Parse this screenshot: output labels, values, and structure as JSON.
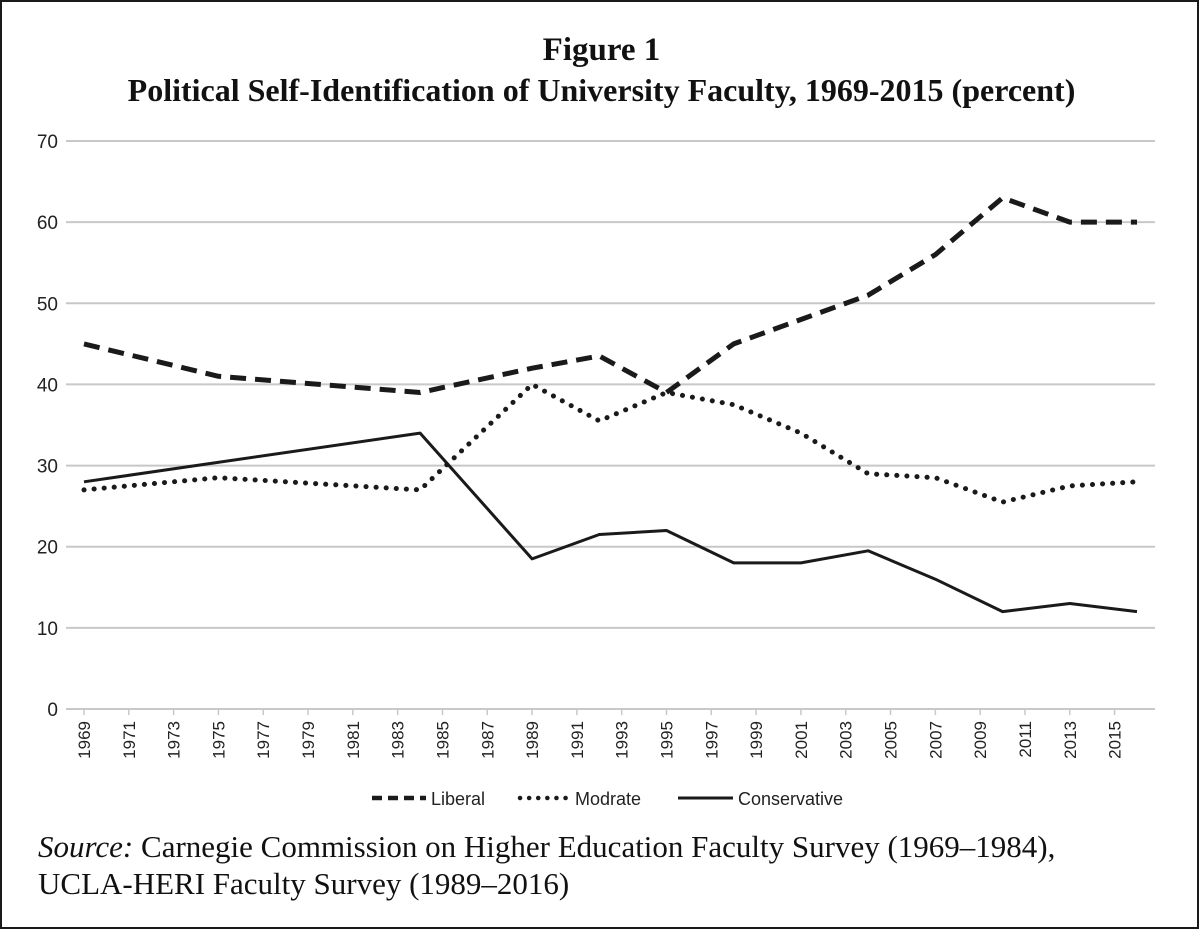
{
  "title": "Figure 1",
  "subtitle": "Political Self-Identification of University Faculty, 1969-2015 (percent)",
  "source": {
    "label": "Source:",
    "line1": "Carnegie Commission on Higher Education Faculty Survey (1969–1984),",
    "line2": "UCLA-HERI Faculty Survey (1989–2016)"
  },
  "chart_data": {
    "type": "line",
    "title": "Political Self-Identification of University Faculty, 1969-2015 (percent)",
    "xlabel": "",
    "ylabel": "",
    "xlim": [
      1969,
      2016
    ],
    "ylim": [
      0,
      70
    ],
    "yticks": [
      0,
      10,
      20,
      30,
      40,
      50,
      60,
      70
    ],
    "xtick_labels": [
      "1969",
      "1971",
      "1973",
      "1975",
      "1977",
      "1979",
      "1981",
      "1983",
      "1985",
      "1987",
      "1989",
      "1991",
      "1993",
      "1995",
      "1997",
      "1999",
      "2001",
      "2003",
      "2005",
      "2007",
      "2009",
      "2011",
      "2013",
      "2015"
    ],
    "grid": true,
    "legend_position": "bottom",
    "series": [
      {
        "name": "Liberal",
        "style": "dashed",
        "color": "#1a1a1a",
        "points": [
          [
            1969,
            45
          ],
          [
            1975,
            41
          ],
          [
            1984,
            39
          ],
          [
            1989,
            42
          ],
          [
            1992,
            43.5
          ],
          [
            1995,
            39
          ],
          [
            1998,
            45
          ],
          [
            2001,
            48
          ],
          [
            2004,
            51
          ],
          [
            2007,
            56
          ],
          [
            2010,
            63
          ],
          [
            2013,
            60
          ],
          [
            2016,
            60
          ]
        ]
      },
      {
        "name": "Modrate",
        "style": "dotted",
        "color": "#1a1a1a",
        "points": [
          [
            1969,
            27
          ],
          [
            1975,
            28.5
          ],
          [
            1984,
            27
          ],
          [
            1989,
            40
          ],
          [
            1992,
            35.5
          ],
          [
            1995,
            39
          ],
          [
            1998,
            37.5
          ],
          [
            2001,
            34
          ],
          [
            2004,
            29
          ],
          [
            2007,
            28.5
          ],
          [
            2010,
            25.5
          ],
          [
            2013,
            27.5
          ],
          [
            2016,
            28
          ]
        ]
      },
      {
        "name": "Conservative",
        "style": "solid",
        "color": "#1a1a1a",
        "points": [
          [
            1969,
            28
          ],
          [
            1984,
            34
          ],
          [
            1989,
            18.5
          ],
          [
            1992,
            21.5
          ],
          [
            1995,
            22
          ],
          [
            1998,
            18
          ],
          [
            2001,
            18
          ],
          [
            2004,
            19.5
          ],
          [
            2007,
            16
          ],
          [
            2010,
            12
          ],
          [
            2013,
            13
          ],
          [
            2016,
            12
          ]
        ]
      }
    ]
  }
}
